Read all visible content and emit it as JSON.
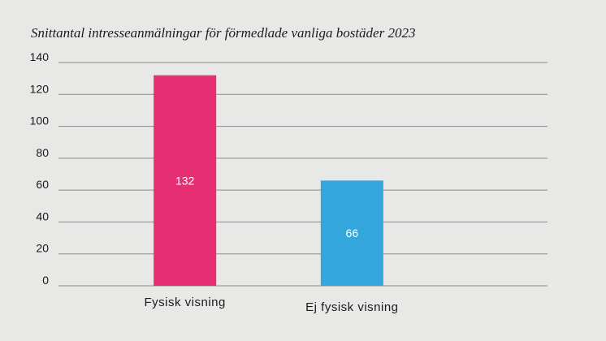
{
  "chart_data": {
    "type": "bar",
    "title": "Snittantal intresseanmälningar för förmedlade vanliga bostäder  2023",
    "xlabel": "",
    "ylabel": "",
    "categories": [
      "Fysisk visning",
      "Ej fysisk visning"
    ],
    "values": [
      132,
      66
    ],
    "value_labels": [
      "132",
      "66"
    ],
    "colors": [
      "#e82e72",
      "#35a6db"
    ],
    "ylim": [
      0,
      140
    ],
    "yticks": [
      0,
      20,
      40,
      60,
      80,
      100,
      120,
      140
    ],
    "grid": true
  }
}
